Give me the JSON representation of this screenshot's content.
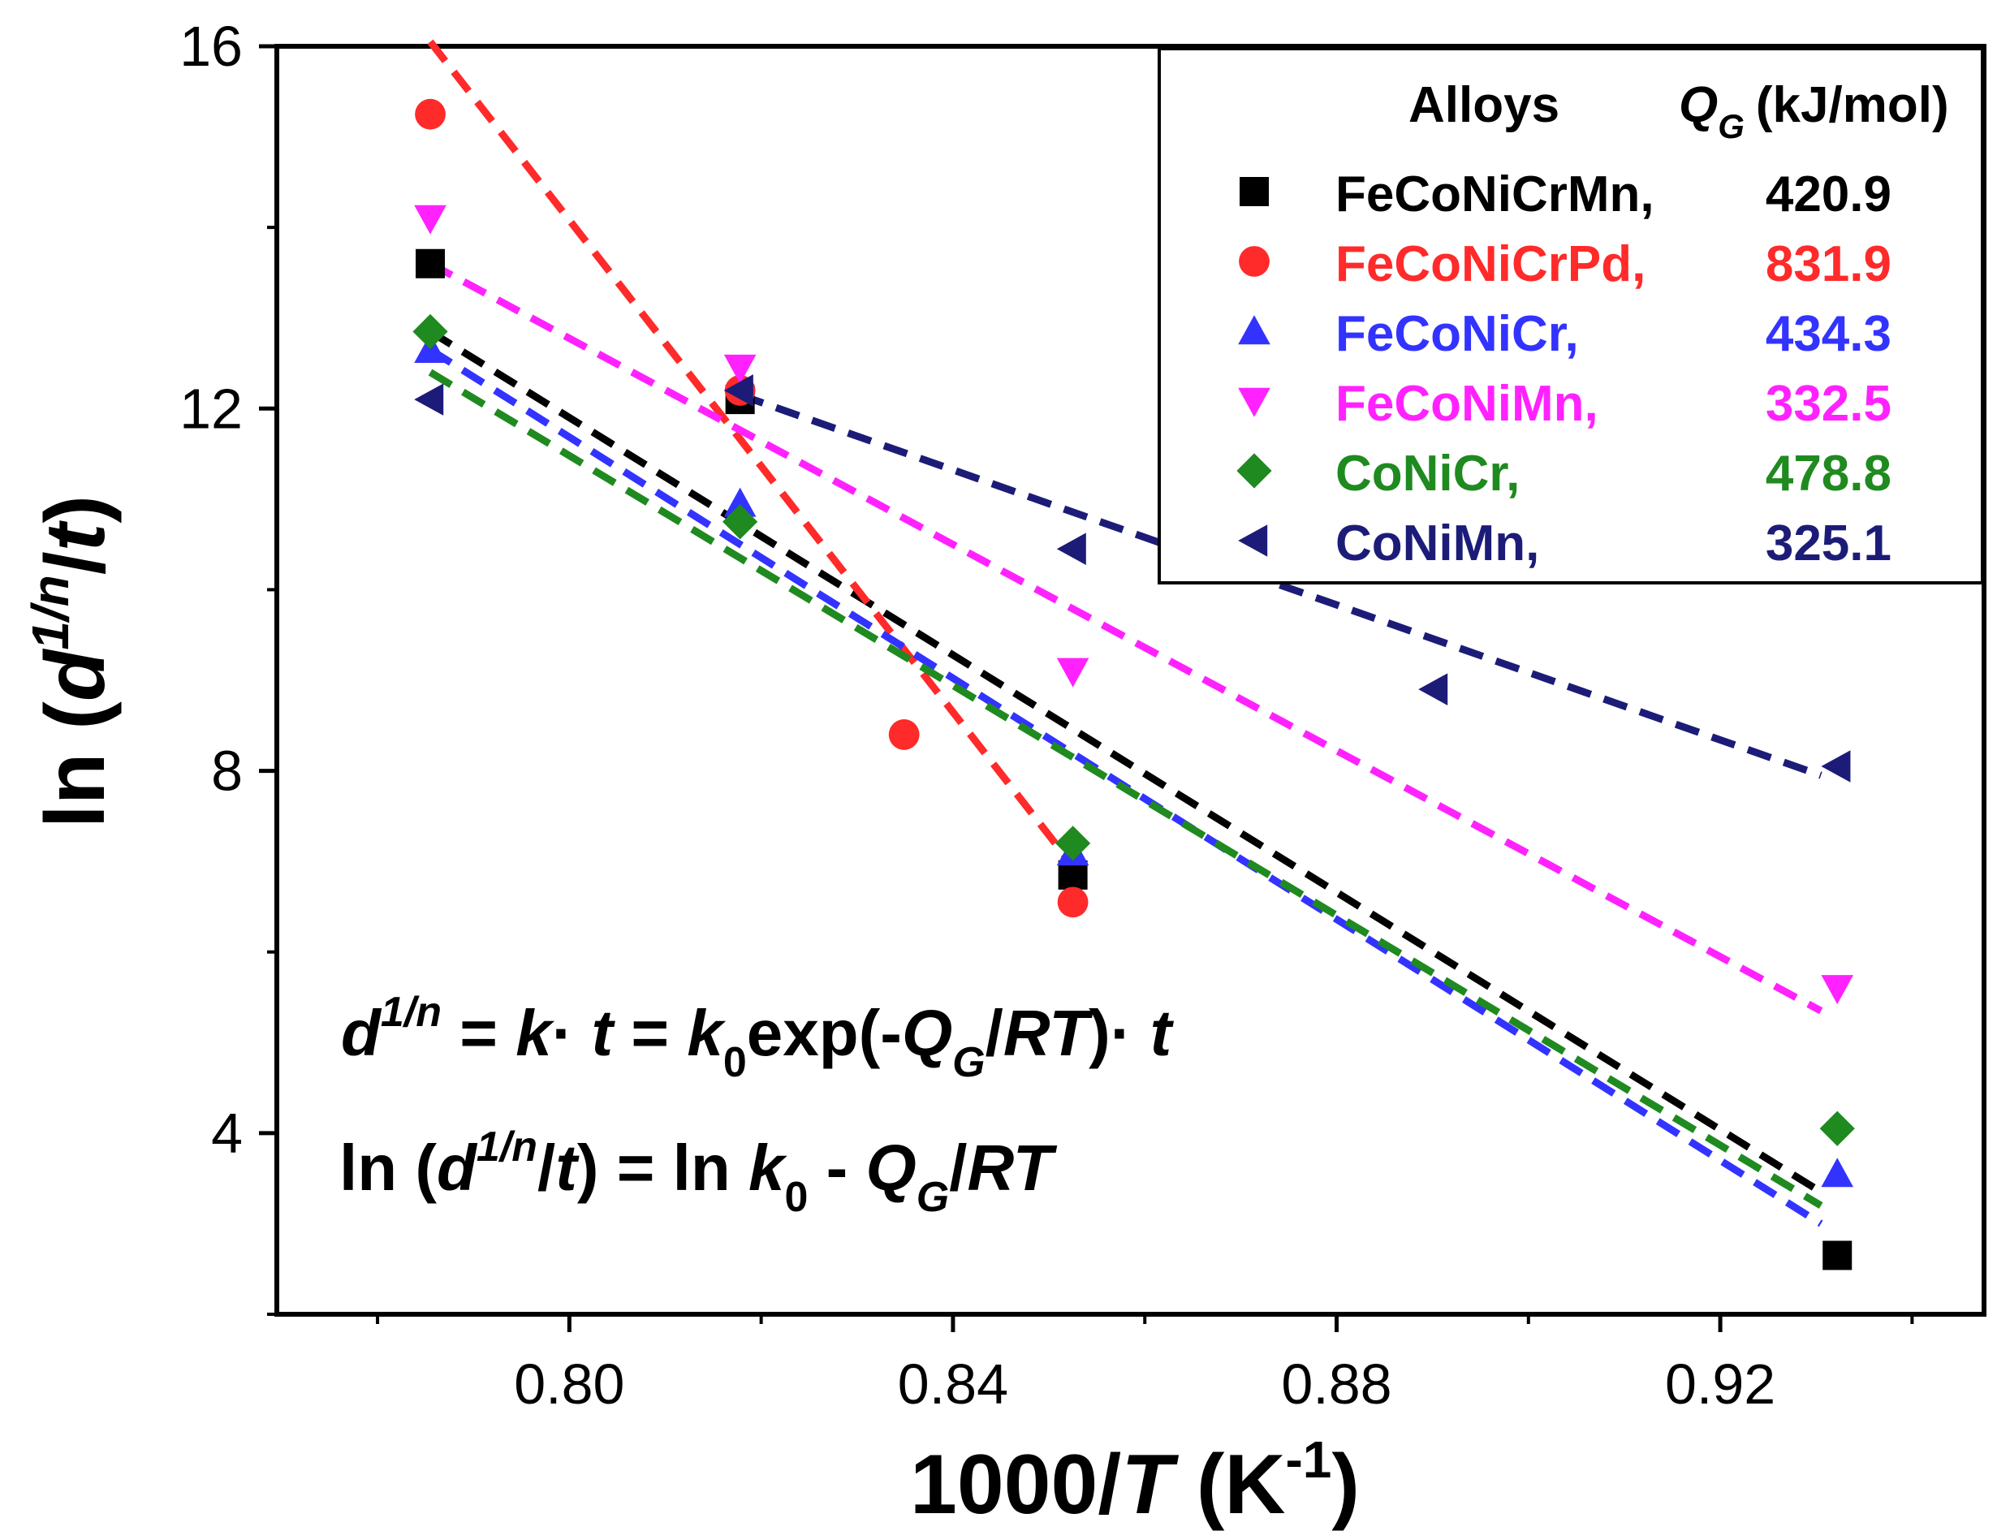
{
  "chart_data": {
    "type": "scatter",
    "title": "",
    "xlabel": "1000/T (K-1)",
    "ylabel": "ln (d1/n/t)",
    "xlim": [
      0.7695,
      0.9475
    ],
    "ylim": [
      2,
      16
    ],
    "xticks": [
      0.8,
      0.84,
      0.88,
      0.92
    ],
    "xtick_labels": [
      "0.80",
      "0.84",
      "0.88",
      "0.92"
    ],
    "xminor_ticks": [
      0.78,
      0.82,
      0.86,
      0.9,
      0.94
    ],
    "yticks": [
      4,
      8,
      12,
      16
    ],
    "ytick_labels": [
      "4",
      "8",
      "12",
      "16"
    ],
    "legend": {
      "placement": "top-right",
      "header_alloys": "Alloys",
      "header_q": "Q",
      "header_q_sub": "G",
      "header_q_unit": "(kJ/mol)"
    },
    "series": [
      {
        "name": "FeCoNiCrMn,",
        "q_value": "420.9",
        "color": "#000000",
        "marker": "square",
        "points": [
          [
            0.7855,
            13.6
          ],
          [
            0.8178,
            12.1
          ],
          [
            0.8525,
            6.85
          ],
          [
            0.9322,
            2.65
          ]
        ],
        "fit": [
          [
            0.7855,
            12.85
          ],
          [
            0.9305,
            3.35
          ]
        ]
      },
      {
        "name": "FeCoNiCrPd,",
        "q_value": "831.9",
        "color": "#ff2a2a",
        "marker": "circle",
        "points": [
          [
            0.7855,
            15.25
          ],
          [
            0.8178,
            12.2
          ],
          [
            0.8349,
            8.4
          ],
          [
            0.8525,
            6.55
          ]
        ],
        "fit": [
          [
            0.7855,
            16.05
          ],
          [
            0.8525,
            6.95
          ]
        ]
      },
      {
        "name": "FeCoNiCr,",
        "q_value": "434.3",
        "color": "#3333ff",
        "marker": "triangle-up",
        "points": [
          [
            0.7855,
            12.65
          ],
          [
            0.8178,
            10.95
          ],
          [
            0.8525,
            7.1
          ],
          [
            0.9322,
            3.55
          ]
        ],
        "fit": [
          [
            0.7855,
            12.65
          ],
          [
            0.9305,
            3.0
          ]
        ]
      },
      {
        "name": "FeCoNiMn,",
        "q_value": "332.5",
        "color": "#ff22ff",
        "marker": "triangle-down",
        "points": [
          [
            0.7855,
            14.1
          ],
          [
            0.8178,
            12.45
          ],
          [
            0.8525,
            9.1
          ],
          [
            0.9322,
            5.6
          ]
        ],
        "fit": [
          [
            0.7855,
            13.6
          ],
          [
            0.9305,
            5.35
          ]
        ]
      },
      {
        "name": "CoNiCr,",
        "q_value": "478.8",
        "color": "#1f8a1f",
        "marker": "diamond",
        "points": [
          [
            0.7855,
            12.85
          ],
          [
            0.8178,
            10.75
          ],
          [
            0.8525,
            7.2
          ],
          [
            0.9322,
            4.05
          ]
        ],
        "fit": [
          [
            0.7855,
            12.4
          ],
          [
            0.9305,
            3.2
          ]
        ]
      },
      {
        "name": "CoNiMn,",
        "q_value": "325.1",
        "color": "#1c1c78",
        "marker": "triangle-left",
        "points": [
          [
            0.7855,
            12.1
          ],
          [
            0.8178,
            12.2
          ],
          [
            0.8525,
            10.45
          ],
          [
            0.8902,
            8.9
          ],
          [
            0.9322,
            8.05
          ]
        ],
        "fit": [
          [
            0.8178,
            12.15
          ],
          [
            0.9305,
            7.95
          ]
        ]
      }
    ],
    "annotations": {
      "eq1": {
        "d": "d",
        "d_sup": "1/n",
        "eq_a": " = ",
        "k": "k",
        "dot1": "·",
        "t1": " t",
        "eq_b": " = ",
        "k0": "k",
        "k0_sub": "0",
        "exp": "exp(-",
        "Q": "Q",
        "Q_sub": "G",
        "slash": "/",
        "RT": "RT",
        "close": ")",
        "dot2": "·",
        "t2": " t"
      },
      "eq2": {
        "ln1": "ln (",
        "d": "d",
        "d_sup": "1/n",
        "slash1": "/",
        "t": "t",
        "mid": ") = ln ",
        "k0": "k",
        "k0_sub": "0",
        "minus": " - ",
        "Q": "Q",
        "Q_sub": "G",
        "slash2": "/",
        "RT": "RT"
      }
    },
    "axis_titles": {
      "x": {
        "pre": "1000/",
        "T": "T",
        "mid": " (K",
        "sup": "-1",
        "post": ")"
      },
      "y": {
        "pre": "ln (",
        "d": "d",
        "sup": "1/n",
        "slash": "/",
        "t": "t",
        "post": ")"
      }
    }
  }
}
